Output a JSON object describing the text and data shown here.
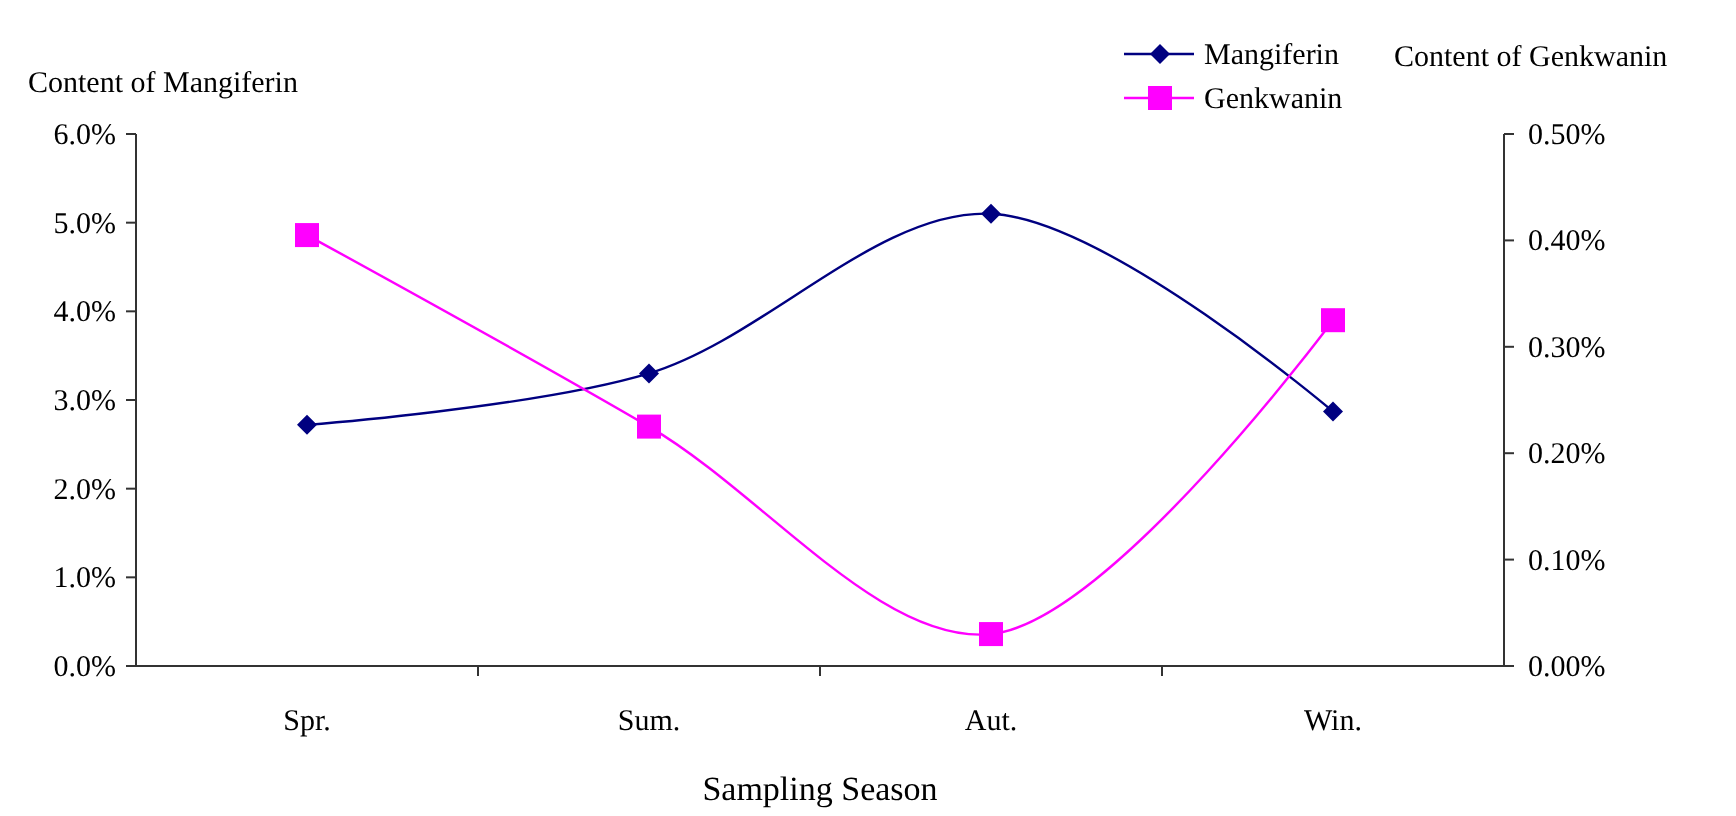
{
  "chart_data": {
    "type": "line",
    "xlabel": "Sampling Season",
    "ylabel": "Content of Mangiferin",
    "y2label": "Content of Genkwanin",
    "categories": [
      "Spr.",
      "Sum.",
      "Aut.",
      "Win."
    ],
    "series": [
      {
        "name": "Mangiferin",
        "color": "#000080",
        "values": [
          2.72,
          3.3,
          5.1,
          2.87
        ],
        "marker": "diamond"
      },
      {
        "name": "Genkwanin",
        "color": "#ff00ff",
        "values": [
          0.405,
          0.225,
          0.03,
          0.325
        ],
        "marker": "square",
        "axis": "y2"
      }
    ],
    "ylim": [
      0,
      6
    ],
    "yticks": [
      {
        "value": 0,
        "label": "0.0%"
      },
      {
        "value": 1,
        "label": "1.0%"
      },
      {
        "value": 2,
        "label": "2.0%"
      },
      {
        "value": 3,
        "label": "3.0%"
      },
      {
        "value": 4,
        "label": "4.0%"
      },
      {
        "value": 5,
        "label": "5.0%"
      },
      {
        "value": 6,
        "label": "6.0%"
      }
    ],
    "y2lim": [
      0,
      0.5
    ],
    "y2ticks": [
      {
        "value": 0,
        "label": "0.00%"
      },
      {
        "value": 0.1,
        "label": "0.10%"
      },
      {
        "value": 0.2,
        "label": "0.20%"
      },
      {
        "value": 0.3,
        "label": "0.30%"
      },
      {
        "value": 0.4,
        "label": "0.40%"
      },
      {
        "value": 0.5,
        "label": "0.50%"
      }
    ],
    "grid": false,
    "legend": "top right",
    "line_style": "solid"
  }
}
